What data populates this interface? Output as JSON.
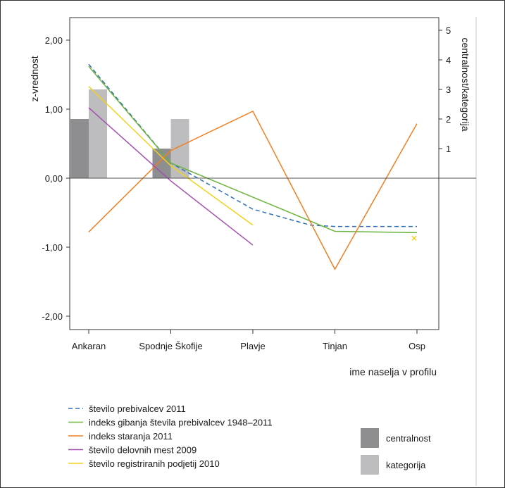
{
  "chart_data": {
    "type": "line",
    "ylabel": "z-vrednost",
    "y2label": "centralnost/kategorija",
    "xlabel": "ime naselja v profilu",
    "categories": [
      "Ankaran",
      "Spodnje Škofije",
      "Plavje",
      "Tinjan",
      "Osp"
    ],
    "ylim": [
      -2.2,
      2.2
    ],
    "y_ticks": [
      "2,00",
      "1,00",
      "0,00",
      "-1,00",
      "-2,00"
    ],
    "y2_ticks": [
      "5",
      "4",
      "3",
      "2",
      "1"
    ],
    "y2lim": [
      0,
      5
    ],
    "grid": false,
    "series": [
      {
        "name": "število prebivalcev 2011",
        "color": "#2e6fb7",
        "dashed": true,
        "x": [
          0,
          1,
          2,
          2.7,
          3,
          4
        ],
        "values": [
          1.65,
          0.22,
          -0.45,
          -0.68,
          -0.7,
          -0.7
        ]
      },
      {
        "name": "indeks gibanja števila prebivalcev 1948–2011",
        "color": "#6cb33e",
        "dashed": false,
        "x": [
          0,
          1,
          3,
          4
        ],
        "values": [
          1.62,
          0.22,
          -0.77,
          -0.79
        ]
      },
      {
        "name": "indeks staranja 2011",
        "color": "#f07f22",
        "dashed": false,
        "x": [
          0,
          1,
          2,
          3,
          4
        ],
        "values": [
          -0.78,
          0.4,
          0.97,
          -1.32,
          0.79
        ]
      },
      {
        "name": "število delovnih mest 2009",
        "color": "#a54fb2",
        "dashed": false,
        "x": [
          0,
          1,
          2
        ],
        "values": [
          1.02,
          -0.04,
          -0.97
        ]
      },
      {
        "name": "število registriranih podjetij 2010",
        "color": "#f1d21b",
        "dashed": false,
        "x": [
          0,
          1,
          2
        ],
        "values": [
          1.33,
          0.18,
          -0.68
        ]
      }
    ],
    "yellow_marker": {
      "x": 4,
      "value": -0.87
    },
    "bars": [
      {
        "name": "centralnost",
        "color": "#8e8e90",
        "values": [
          2,
          1,
          null,
          null,
          null
        ]
      },
      {
        "name": "kategorija",
        "color": "#bdbdbf",
        "values": [
          3,
          2,
          null,
          null,
          null
        ]
      }
    ]
  }
}
